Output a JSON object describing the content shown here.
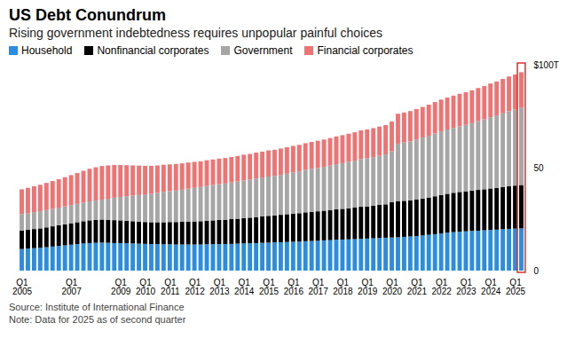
{
  "chart_data": {
    "type": "bar",
    "stacked": true,
    "title": "US Debt Conundrum",
    "subtitle": "Rising government indebtedness requires unpopular painful choices",
    "source": "Source: Institute of International Finance",
    "note": "Note: Data for 2025 as of second quarter",
    "legend": "top",
    "grid": false,
    "ylim": [
      0,
      100
    ],
    "yticks": [
      0,
      50,
      {
        "value": 100,
        "label": "$100T"
      }
    ],
    "categories": [
      "Q1\n2005",
      null,
      null,
      null,
      null,
      null,
      null,
      null,
      "Q1\n2007",
      null,
      null,
      null,
      null,
      null,
      null,
      null,
      "Q1\n2009",
      null,
      null,
      null,
      "Q1\n2010",
      null,
      null,
      null,
      "Q1\n2011",
      null,
      null,
      null,
      "Q1\n2012",
      null,
      null,
      null,
      "Q1\n2013",
      null,
      null,
      null,
      "Q1\n2014",
      null,
      null,
      null,
      "Q1\n2015",
      null,
      null,
      null,
      "Q1\n2016",
      null,
      null,
      null,
      "Q1\n2017",
      null,
      null,
      null,
      "Q1\n2018",
      null,
      null,
      null,
      "Q1\n2019",
      null,
      null,
      null,
      "Q1\n2020",
      null,
      null,
      null,
      "Q1\n2021",
      null,
      null,
      null,
      "Q1\n2022",
      null,
      null,
      null,
      "Q1\n2023",
      null,
      null,
      null,
      "Q1\n2024",
      null,
      null,
      null,
      "Q1\n2025",
      null
    ],
    "series": [
      {
        "name": "Household",
        "color": "#2b8de0",
        "values": [
          10.5,
          10.7,
          10.9,
          11.1,
          11.4,
          11.7,
          12.0,
          12.3,
          12.6,
          12.9,
          13.2,
          13.4,
          13.5,
          13.6,
          13.5,
          13.4,
          13.4,
          13.3,
          13.2,
          13.1,
          13.0,
          12.9,
          12.9,
          12.8,
          12.8,
          12.7,
          12.7,
          12.7,
          12.7,
          12.7,
          12.8,
          12.8,
          12.9,
          12.9,
          13.0,
          13.1,
          13.2,
          13.3,
          13.4,
          13.5,
          13.6,
          13.7,
          13.8,
          13.9,
          14.0,
          14.1,
          14.3,
          14.4,
          14.5,
          14.7,
          14.8,
          15.0,
          15.1,
          15.2,
          15.3,
          15.5,
          15.6,
          15.7,
          15.9,
          16.0,
          16.1,
          16.2,
          16.4,
          16.6,
          16.8,
          17.1,
          17.4,
          17.7,
          18.0,
          18.4,
          18.7,
          18.9,
          19.1,
          19.3,
          19.4,
          19.6,
          19.8,
          19.9,
          20.1,
          20.3,
          20.4,
          20.5
        ]
      },
      {
        "name": "Nonfinancial corporates",
        "color": "#000000",
        "values": [
          9.0,
          9.1,
          9.3,
          9.4,
          9.6,
          9.8,
          10.0,
          10.2,
          10.4,
          10.6,
          10.8,
          11.0,
          11.1,
          11.2,
          11.2,
          11.1,
          11.0,
          10.9,
          10.8,
          10.7,
          10.6,
          10.6,
          10.6,
          10.7,
          10.8,
          10.9,
          11.0,
          11.1,
          11.2,
          11.3,
          11.4,
          11.6,
          11.7,
          11.8,
          12.0,
          12.1,
          12.3,
          12.4,
          12.6,
          12.8,
          13.0,
          13.1,
          13.3,
          13.5,
          13.7,
          13.8,
          14.0,
          14.1,
          14.3,
          14.4,
          14.6,
          14.8,
          14.9,
          15.1,
          15.3,
          15.5,
          15.6,
          15.8,
          16.0,
          16.2,
          17.2,
          17.6,
          17.5,
          17.5,
          17.7,
          17.9,
          18.1,
          18.4,
          18.7,
          18.9,
          19.1,
          19.3,
          19.4,
          19.6,
          19.8,
          19.9,
          20.1,
          20.3,
          20.5,
          20.7,
          20.9,
          21.1
        ]
      },
      {
        "name": "Government",
        "color": "#a6a6a6",
        "values": [
          8.0,
          8.1,
          8.2,
          8.3,
          8.4,
          8.5,
          8.6,
          8.7,
          8.8,
          8.9,
          9.0,
          9.2,
          9.4,
          9.7,
          10.2,
          10.9,
          11.4,
          11.9,
          12.4,
          12.9,
          13.4,
          13.8,
          14.2,
          14.7,
          15.0,
          15.3,
          15.6,
          16.0,
          16.3,
          16.6,
          16.9,
          17.2,
          17.4,
          17.6,
          17.8,
          18.1,
          18.3,
          18.5,
          18.7,
          18.9,
          19.1,
          19.2,
          19.4,
          19.7,
          20.0,
          20.3,
          20.6,
          20.9,
          21.1,
          21.3,
          21.6,
          21.9,
          22.2,
          22.5,
          22.8,
          23.2,
          23.4,
          23.6,
          23.9,
          24.2,
          24.6,
          27.8,
          28.3,
          28.7,
          29.2,
          29.6,
          30.0,
          30.5,
          30.9,
          31.2,
          31.5,
          31.9,
          32.3,
          32.7,
          33.4,
          34.0,
          34.6,
          35.2,
          35.8,
          36.4,
          37.0,
          37.6
        ]
      },
      {
        "name": "Financial corporates",
        "color": "#f07373",
        "values": [
          12.0,
          12.3,
          12.6,
          12.9,
          13.2,
          13.5,
          13.8,
          14.2,
          14.6,
          15.0,
          15.5,
          15.9,
          16.2,
          16.3,
          16.2,
          15.9,
          15.5,
          15.1,
          14.7,
          14.3,
          13.9,
          13.6,
          13.4,
          13.2,
          13.0,
          12.9,
          12.8,
          12.7,
          12.6,
          12.5,
          12.5,
          12.4,
          12.4,
          12.4,
          12.4,
          12.4,
          12.5,
          12.5,
          12.6,
          12.6,
          12.7,
          12.7,
          12.8,
          12.8,
          12.9,
          12.9,
          13.0,
          13.1,
          13.2,
          13.3,
          13.4,
          13.5,
          13.6,
          13.7,
          13.8,
          13.9,
          14.0,
          14.1,
          14.2,
          14.3,
          14.5,
          14.6,
          14.6,
          14.7,
          14.8,
          14.9,
          15.1,
          15.3,
          15.5,
          15.6,
          15.7,
          15.8,
          15.9,
          16.0,
          16.1,
          16.2,
          16.4,
          16.5,
          16.7,
          16.9,
          17.0,
          17.2
        ]
      }
    ]
  }
}
